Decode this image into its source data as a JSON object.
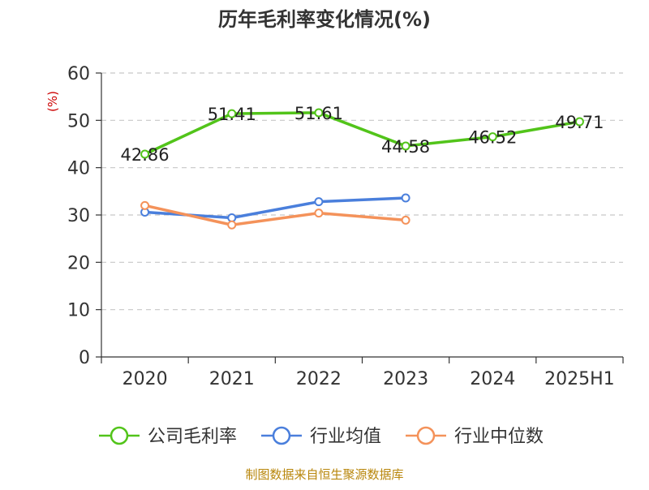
{
  "chart_data": {
    "type": "line",
    "title": "历年毛利率变化情况(%)",
    "ylabel": "(%)",
    "categories": [
      "2020",
      "2021",
      "2022",
      "2023",
      "2024",
      "2025H1"
    ],
    "ylim": [
      0,
      60
    ],
    "yticks": [
      "0",
      "10",
      "20",
      "30",
      "40",
      "50",
      "60"
    ],
    "grid": true,
    "legend_position": "bottom",
    "series": [
      {
        "name": "公司毛利率",
        "color": "#52c41a",
        "values": [
          42.86,
          51.41,
          51.61,
          44.58,
          46.52,
          49.71
        ],
        "labels": [
          "42.86",
          "51.41",
          "51.61",
          "44.58",
          "46.52",
          "49.71"
        ]
      },
      {
        "name": "行业均值",
        "color": "#4a7fdc",
        "values": [
          30.6,
          29.4,
          32.8,
          33.6,
          null,
          null
        ]
      },
      {
        "name": "行业中位数",
        "color": "#f4925a",
        "values": [
          32.0,
          27.9,
          30.4,
          28.9,
          null,
          null
        ]
      }
    ],
    "source": "制图数据来自恒生聚源数据库"
  }
}
